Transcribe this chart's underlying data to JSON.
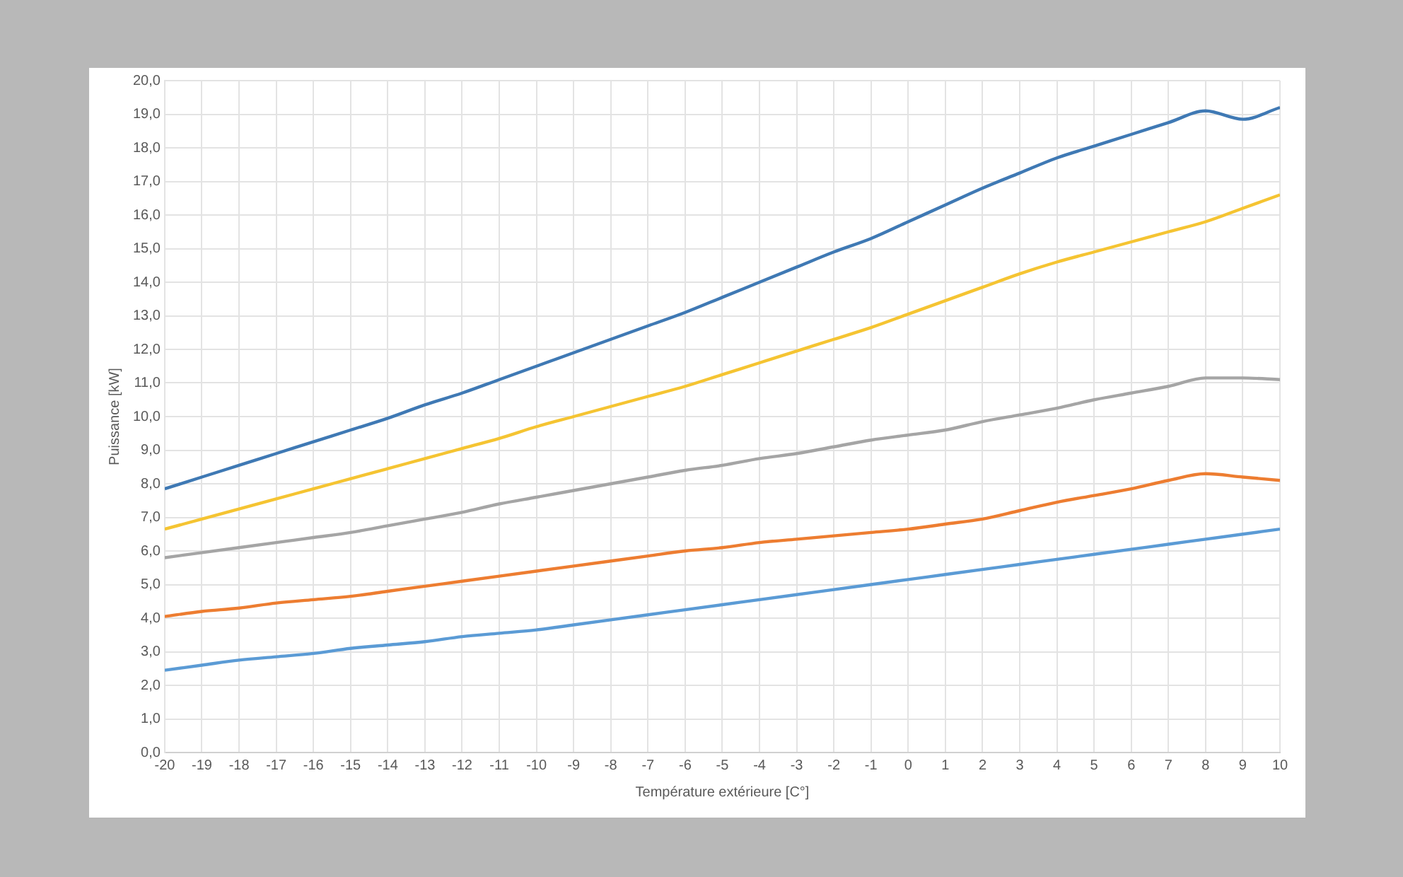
{
  "chart_data": {
    "type": "line",
    "xlabel": "Température extérieure [C°]",
    "ylabel": "Puissance [kW]",
    "x": [
      -20,
      -19,
      -18,
      -17,
      -16,
      -15,
      -14,
      -13,
      -12,
      -11,
      -10,
      -9,
      -8,
      -7,
      -6,
      -5,
      -4,
      -3,
      -2,
      -1,
      0,
      1,
      2,
      3,
      4,
      5,
      6,
      7,
      8,
      9,
      10
    ],
    "series": [
      {
        "color": "#3f79b4",
        "values": [
          7.85,
          8.2,
          8.55,
          8.9,
          9.25,
          9.6,
          9.95,
          10.35,
          10.7,
          11.1,
          11.5,
          11.9,
          12.3,
          12.7,
          13.1,
          13.55,
          14.0,
          14.45,
          14.9,
          15.3,
          15.8,
          16.3,
          16.8,
          17.25,
          17.7,
          18.05,
          18.4,
          18.75,
          19.1,
          18.85,
          19.2
        ]
      },
      {
        "color": "#f5c432",
        "values": [
          6.65,
          6.95,
          7.25,
          7.55,
          7.85,
          8.15,
          8.45,
          8.75,
          9.05,
          9.35,
          9.7,
          10.0,
          10.3,
          10.6,
          10.9,
          11.25,
          11.6,
          11.95,
          12.3,
          12.65,
          13.05,
          13.45,
          13.85,
          14.25,
          14.6,
          14.9,
          15.2,
          15.5,
          15.8,
          16.2,
          16.6
        ]
      },
      {
        "color": "#a5a5a5",
        "values": [
          5.8,
          5.95,
          6.1,
          6.25,
          6.4,
          6.55,
          6.75,
          6.95,
          7.15,
          7.4,
          7.6,
          7.8,
          8.0,
          8.2,
          8.4,
          8.55,
          8.75,
          8.9,
          9.1,
          9.3,
          9.45,
          9.6,
          9.85,
          10.05,
          10.25,
          10.5,
          10.7,
          10.9,
          11.15,
          11.15,
          11.1
        ]
      },
      {
        "color": "#ed7d31",
        "values": [
          4.05,
          4.2,
          4.3,
          4.45,
          4.55,
          4.65,
          4.8,
          4.95,
          5.1,
          5.25,
          5.4,
          5.55,
          5.7,
          5.85,
          6.0,
          6.1,
          6.25,
          6.35,
          6.45,
          6.55,
          6.65,
          6.8,
          6.95,
          7.2,
          7.45,
          7.65,
          7.85,
          8.1,
          8.3,
          8.2,
          8.1
        ]
      },
      {
        "color": "#5b9bd5",
        "values": [
          2.45,
          2.6,
          2.75,
          2.85,
          2.95,
          3.1,
          3.2,
          3.3,
          3.45,
          3.55,
          3.65,
          3.8,
          3.95,
          4.1,
          4.25,
          4.4,
          4.55,
          4.7,
          4.85,
          5.0,
          5.15,
          5.3,
          5.45,
          5.6,
          5.75,
          5.9,
          6.05,
          6.2,
          6.35,
          6.5,
          6.65
        ]
      }
    ],
    "xlim": [
      -20,
      10
    ],
    "xticks": [
      -20,
      -19,
      -18,
      -17,
      -16,
      -15,
      -14,
      -13,
      -12,
      -11,
      -10,
      -9,
      -8,
      -7,
      -6,
      -5,
      -4,
      -3,
      -2,
      -1,
      0,
      1,
      2,
      3,
      4,
      5,
      6,
      7,
      8,
      9,
      10
    ],
    "ylim": [
      0,
      20
    ],
    "yticks": [
      {
        "value": 0,
        "label": "0,0"
      },
      {
        "value": 1,
        "label": "1,0"
      },
      {
        "value": 2,
        "label": "2,0"
      },
      {
        "value": 3,
        "label": "3,0"
      },
      {
        "value": 4,
        "label": "4,0"
      },
      {
        "value": 5,
        "label": "5,0"
      },
      {
        "value": 6,
        "label": "6,0"
      },
      {
        "value": 7,
        "label": "7,0"
      },
      {
        "value": 8,
        "label": "8,0"
      },
      {
        "value": 9,
        "label": "9,0"
      },
      {
        "value": 10,
        "label": "10,0"
      },
      {
        "value": 11,
        "label": "11,0"
      },
      {
        "value": 12,
        "label": "12,0"
      },
      {
        "value": 13,
        "label": "13,0"
      },
      {
        "value": 14,
        "label": "14,0"
      },
      {
        "value": 15,
        "label": "15,0"
      },
      {
        "value": 16,
        "label": "16,0"
      },
      {
        "value": 17,
        "label": "17,0"
      },
      {
        "value": 18,
        "label": "18,0"
      },
      {
        "value": 19,
        "label": "19,0"
      },
      {
        "value": 20,
        "label": "20,0"
      }
    ],
    "grid": true,
    "legend": false,
    "marker": "none",
    "line_style": "solid"
  }
}
